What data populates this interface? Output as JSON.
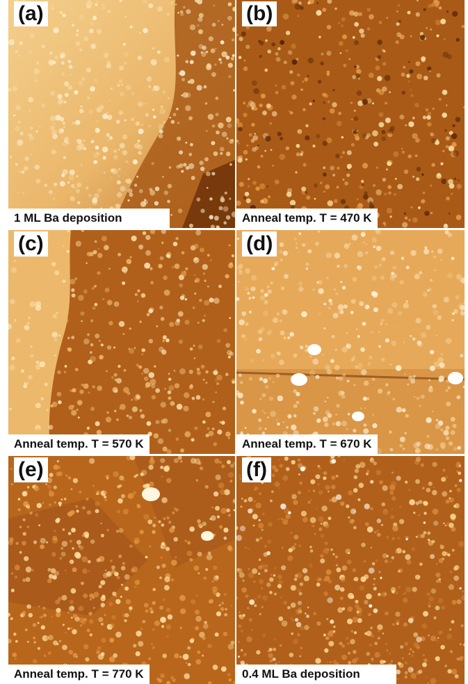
{
  "panels": [
    {
      "letter": "(a)",
      "caption": "1 ML Ba deposition"
    },
    {
      "letter": "(b)",
      "caption": "Anneal temp. T = 470 K"
    },
    {
      "letter": "(c)",
      "caption": "Anneal temp. T = 570 K"
    },
    {
      "letter": "(d)",
      "caption": "Anneal temp. T = 670 K"
    },
    {
      "letter": "(e)",
      "caption": "Anneal temp. T = 770 K"
    },
    {
      "letter": "(f)",
      "caption": "0.4 ML Ba deposition"
    }
  ],
  "colors": {
    "dark": "#5a2a08",
    "mid": "#b8661c",
    "light": "#f2c77e",
    "bright": "#fff4dc"
  }
}
